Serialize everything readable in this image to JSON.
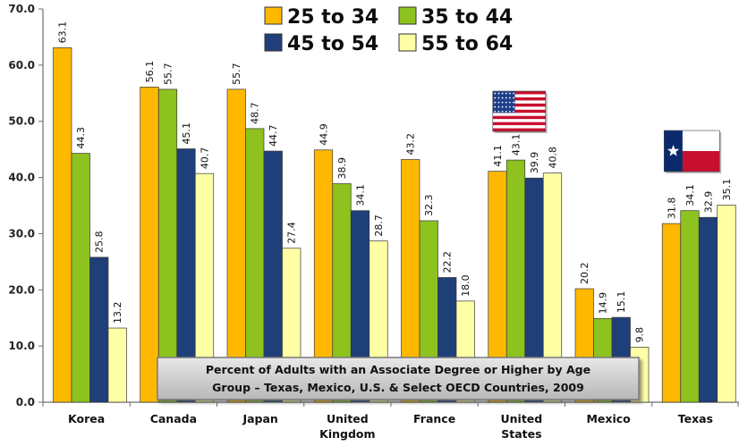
{
  "chart_data": {
    "type": "bar",
    "title": "Percent of Adults with an Associate Degree or Higher by Age Group – Texas, Mexico, U.S. & Select OECD Countries, 2009",
    "title_lines": [
      "Percent of Adults with an Associate Degree or Higher by Age",
      "Group – Texas, Mexico, U.S. & Select OECD Countries, 2009"
    ],
    "xlabel": "",
    "ylabel": "",
    "ylim": [
      0,
      70
    ],
    "yticks": [
      "0.0",
      "10.0",
      "20.0",
      "30.0",
      "40.0",
      "50.0",
      "60.0",
      "70.0"
    ],
    "grid": false,
    "legend_position": "top-center",
    "categories": [
      [
        "Korea"
      ],
      [
        "Canada"
      ],
      [
        "Japan"
      ],
      [
        "United",
        "Kingdom"
      ],
      [
        "France"
      ],
      [
        "United",
        "States"
      ],
      [
        "Mexico"
      ],
      [
        "Texas"
      ]
    ],
    "series": [
      {
        "name": "25 to 34",
        "color": "#FFB800",
        "values": [
          63.1,
          56.1,
          55.7,
          44.9,
          43.2,
          41.1,
          20.2,
          31.8
        ],
        "labels": [
          "63.1",
          "56.1",
          "55.7",
          "44.9",
          "43.2",
          "41.1",
          "20.2",
          "31.8"
        ]
      },
      {
        "name": "35 to 44",
        "color": "#8DC21F",
        "values": [
          44.3,
          55.7,
          48.7,
          38.9,
          32.3,
          43.1,
          14.9,
          34.1
        ],
        "labels": [
          "44.3",
          "55.7",
          "48.7",
          "38.9",
          "32.3",
          "43.1",
          "14.9",
          "34.1"
        ]
      },
      {
        "name": "45 to 54",
        "color": "#1F3F78",
        "values": [
          25.8,
          45.1,
          44.7,
          34.1,
          22.2,
          39.9,
          15.1,
          32.9
        ],
        "labels": [
          "25.8",
          "45.1",
          "44.7",
          "34.1",
          "22.2",
          "39.9",
          "15.1",
          "32.9"
        ]
      },
      {
        "name": "55 to 64",
        "color": "#FFFFA6",
        "values": [
          13.2,
          40.7,
          27.4,
          28.7,
          18.0,
          40.8,
          9.8,
          35.1
        ],
        "labels": [
          "13.2",
          "40.7",
          "27.4",
          "28.7",
          "18.0",
          "40.8",
          "9.8",
          "35.1"
        ]
      }
    ],
    "flags": [
      {
        "category_index": 5,
        "icon": "us-flag-icon"
      },
      {
        "category_index": 7,
        "icon": "texas-flag-icon"
      }
    ]
  }
}
